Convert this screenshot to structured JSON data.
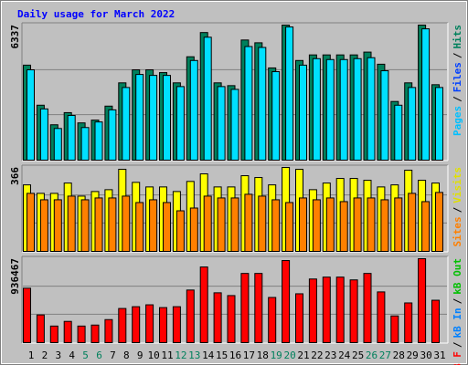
{
  "title": "Daily usage for March 2022",
  "legend_separator": "/",
  "chart_data": [
    {
      "type": "bar",
      "ylim": [
        0,
        6337
      ],
      "yticks": [
        6337
      ],
      "legend": [
        {
          "label": "Pages",
          "color": "#00c0ff"
        },
        {
          "label": "Files",
          "color": "#0040ff"
        },
        {
          "label": "Hits",
          "color": "#00805c"
        }
      ],
      "series": [
        {
          "color": "#00805c",
          "values": [
            4458,
            2578,
            1660,
            2229,
            1748,
            1879,
            2535,
            3627,
            4239,
            4239,
            4108,
            3627,
            4851,
            5987,
            3627,
            3496,
            5638,
            5507,
            4327,
            6337,
            4676,
            4938,
            4938,
            4938,
            4938,
            5070,
            4501,
            2753,
            3627,
            6337,
            3540
          ]
        },
        {
          "color": "#00e0ff",
          "values": [
            4239,
            2404,
            1486,
            2098,
            1530,
            1792,
            2360,
            3409,
            4021,
            3977,
            3977,
            3452,
            4676,
            5768,
            3452,
            3321,
            5331,
            5288,
            4152,
            6249,
            4457,
            4763,
            4720,
            4720,
            4763,
            4807,
            4195,
            2578,
            3409,
            6162,
            3409
          ]
        }
      ]
    },
    {
      "type": "bar",
      "ylim": [
        0,
        366
      ],
      "yticks": [
        366
      ],
      "legend": [
        {
          "label": "Sites",
          "color": "#ff8000"
        },
        {
          "label": "Visits",
          "color": "#e0e000"
        }
      ],
      "series": [
        {
          "color": "#ffff00",
          "values": [
            290,
            253,
            253,
            298,
            241,
            261,
            269,
            358,
            301,
            281,
            281,
            261,
            305,
            338,
            281,
            281,
            330,
            322,
            290,
            366,
            358,
            269,
            298,
            318,
            318,
            310,
            281,
            290,
            354,
            310,
            298
          ]
        },
        {
          "color": "#ff8000",
          "values": [
            253,
            225,
            225,
            241,
            225,
            233,
            233,
            241,
            213,
            225,
            213,
            177,
            189,
            241,
            233,
            233,
            249,
            241,
            225,
            213,
            233,
            225,
            233,
            217,
            233,
            233,
            225,
            233,
            253,
            217,
            257
          ]
        }
      ]
    },
    {
      "type": "bar",
      "ylim": [
        0,
        936467
      ],
      "yticks": [
        936467
      ],
      "legend": [
        {
          "label": "kB F",
          "color": "#ff0000"
        },
        {
          "label": "kB In",
          "color": "#0080ff"
        },
        {
          "label": "kB Out",
          "color": "#00c000"
        }
      ],
      "categories": [
        "1",
        "2",
        "3",
        "4",
        "5",
        "6",
        "7",
        "8",
        "9",
        "10",
        "11",
        "12",
        "13",
        "14",
        "15",
        "16",
        "17",
        "18",
        "19",
        "20",
        "21",
        "22",
        "23",
        "24",
        "25",
        "26",
        "27",
        "28",
        "29",
        "30",
        "31"
      ],
      "highlighted": [
        "5",
        "6",
        "12",
        "13",
        "19",
        "20",
        "26",
        "27"
      ],
      "highlight_color": "#00805c",
      "series": [
        {
          "color": "#ff0000",
          "values": [
            607000,
            309000,
            185000,
            237000,
            185000,
            196000,
            257000,
            381000,
            401000,
            422000,
            391000,
            401000,
            587000,
            844000,
            556000,
            525000,
            772000,
            772000,
            504000,
            916000,
            545000,
            710000,
            731000,
            731000,
            700000,
            772000,
            566000,
            298000,
            443000,
            936467,
            473000
          ]
        }
      ]
    }
  ]
}
